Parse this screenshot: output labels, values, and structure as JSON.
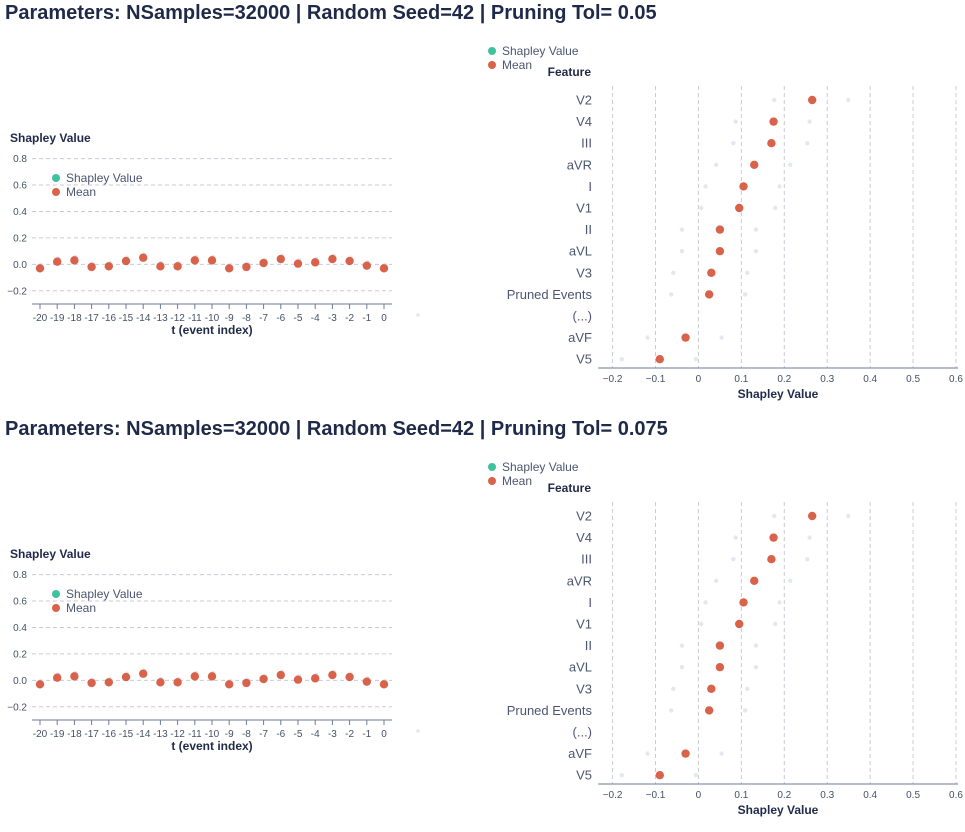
{
  "sections": [
    {
      "title": "Parameters: NSamples=32000 | Random Seed=42 | Pruning Tol= 0.05"
    },
    {
      "title": "Parameters: NSamples=32000 | Random Seed=42 | Pruning Tol= 0.075"
    }
  ],
  "colors": {
    "shap": "#3fc1a0",
    "mean": "#d9624a",
    "ghost": "#e4e8ee"
  },
  "chart_data": [
    {
      "type": "scatter",
      "title": "",
      "xlabel": "t (event index)",
      "ylabel": "Shapley Value",
      "x": [
        -20,
        -19,
        -18,
        -17,
        -16,
        -15,
        -14,
        -13,
        -12,
        -11,
        -10,
        -9,
        -8,
        -7,
        -6,
        -5,
        -4,
        -3,
        -2,
        -1,
        0
      ],
      "x_ticks": [
        "-20",
        "-19",
        "-18",
        "-17",
        "-16",
        "-15",
        "-14",
        "-13",
        "-12",
        "-11",
        "-10",
        "-9",
        "-8",
        "-7",
        "-6",
        "-5",
        "-4",
        "-3",
        "-2",
        "-1",
        "0"
      ],
      "y_ticks": [
        "0.8",
        "0.6",
        "0.4",
        "0.2",
        "0.0",
        "−0.2"
      ],
      "ylim": [
        -0.3,
        0.88
      ],
      "grid": true,
      "legend": [
        "Shapley Value",
        "Mean"
      ],
      "legend_position": "top-left",
      "series": [
        {
          "name": "Mean",
          "values": [
            -0.03,
            0.02,
            0.03,
            -0.02,
            -0.015,
            0.025,
            0.05,
            -0.015,
            -0.015,
            0.03,
            0.03,
            -0.03,
            -0.02,
            0.01,
            0.04,
            0.005,
            0.015,
            0.04,
            0.025,
            -0.01,
            -0.03
          ]
        }
      ]
    },
    {
      "type": "scatter",
      "title": "",
      "xlabel": "Shapley Value",
      "ylabel": "Feature",
      "categories": [
        "V2",
        "V4",
        "III",
        "aVR",
        "I",
        "V1",
        "II",
        "aVL",
        "V3",
        "Pruned Events",
        "(...)",
        "aVF",
        "V5"
      ],
      "x_ticks": [
        "−0.2",
        "−0.1",
        "0",
        "0.1",
        "0.2",
        "0.3",
        "0.4",
        "0.5",
        "0.6"
      ],
      "xlim": [
        -0.22,
        0.6
      ],
      "grid": true,
      "legend": [
        "Shapley Value",
        "Mean"
      ],
      "legend_position": "top",
      "series": [
        {
          "name": "Mean",
          "values": [
            0.265,
            0.175,
            0.17,
            0.13,
            0.105,
            0.095,
            0.05,
            0.05,
            0.03,
            0.025,
            null,
            -0.03,
            -0.09
          ]
        }
      ]
    },
    {
      "type": "scatter",
      "title": "",
      "xlabel": "t (event index)",
      "ylabel": "Shapley Value",
      "x": [
        -20,
        -19,
        -18,
        -17,
        -16,
        -15,
        -14,
        -13,
        -12,
        -11,
        -10,
        -9,
        -8,
        -7,
        -6,
        -5,
        -4,
        -3,
        -2,
        -1,
        0
      ],
      "x_ticks": [
        "-20",
        "-19",
        "-18",
        "-17",
        "-16",
        "-15",
        "-14",
        "-13",
        "-12",
        "-11",
        "-10",
        "-9",
        "-8",
        "-7",
        "-6",
        "-5",
        "-4",
        "-3",
        "-2",
        "-1",
        "0"
      ],
      "y_ticks": [
        "0.8",
        "0.6",
        "0.4",
        "0.2",
        "0.0",
        "−0.2"
      ],
      "ylim": [
        -0.3,
        0.88
      ],
      "grid": true,
      "legend": [
        "Shapley Value",
        "Mean"
      ],
      "legend_position": "top-left",
      "series": [
        {
          "name": "Mean",
          "values": [
            -0.03,
            0.02,
            0.03,
            -0.02,
            -0.015,
            0.025,
            0.05,
            -0.015,
            -0.015,
            0.03,
            0.03,
            -0.03,
            -0.02,
            0.01,
            0.04,
            0.005,
            0.015,
            0.04,
            0.025,
            -0.01,
            -0.03
          ]
        }
      ]
    },
    {
      "type": "scatter",
      "title": "",
      "xlabel": "Shapley Value",
      "ylabel": "Feature",
      "categories": [
        "V2",
        "V4",
        "III",
        "aVR",
        "I",
        "V1",
        "II",
        "aVL",
        "V3",
        "Pruned Events",
        "(...)",
        "aVF",
        "V5"
      ],
      "x_ticks": [
        "−0.2",
        "−0.1",
        "0",
        "0.1",
        "0.2",
        "0.3",
        "0.4",
        "0.5",
        "0.6"
      ],
      "xlim": [
        -0.22,
        0.6
      ],
      "grid": true,
      "legend": [
        "Shapley Value",
        "Mean"
      ],
      "legend_position": "top",
      "series": [
        {
          "name": "Mean",
          "values": [
            0.265,
            0.175,
            0.17,
            0.13,
            0.105,
            0.095,
            0.05,
            0.05,
            0.03,
            0.025,
            null,
            -0.03,
            -0.09
          ]
        }
      ]
    }
  ]
}
